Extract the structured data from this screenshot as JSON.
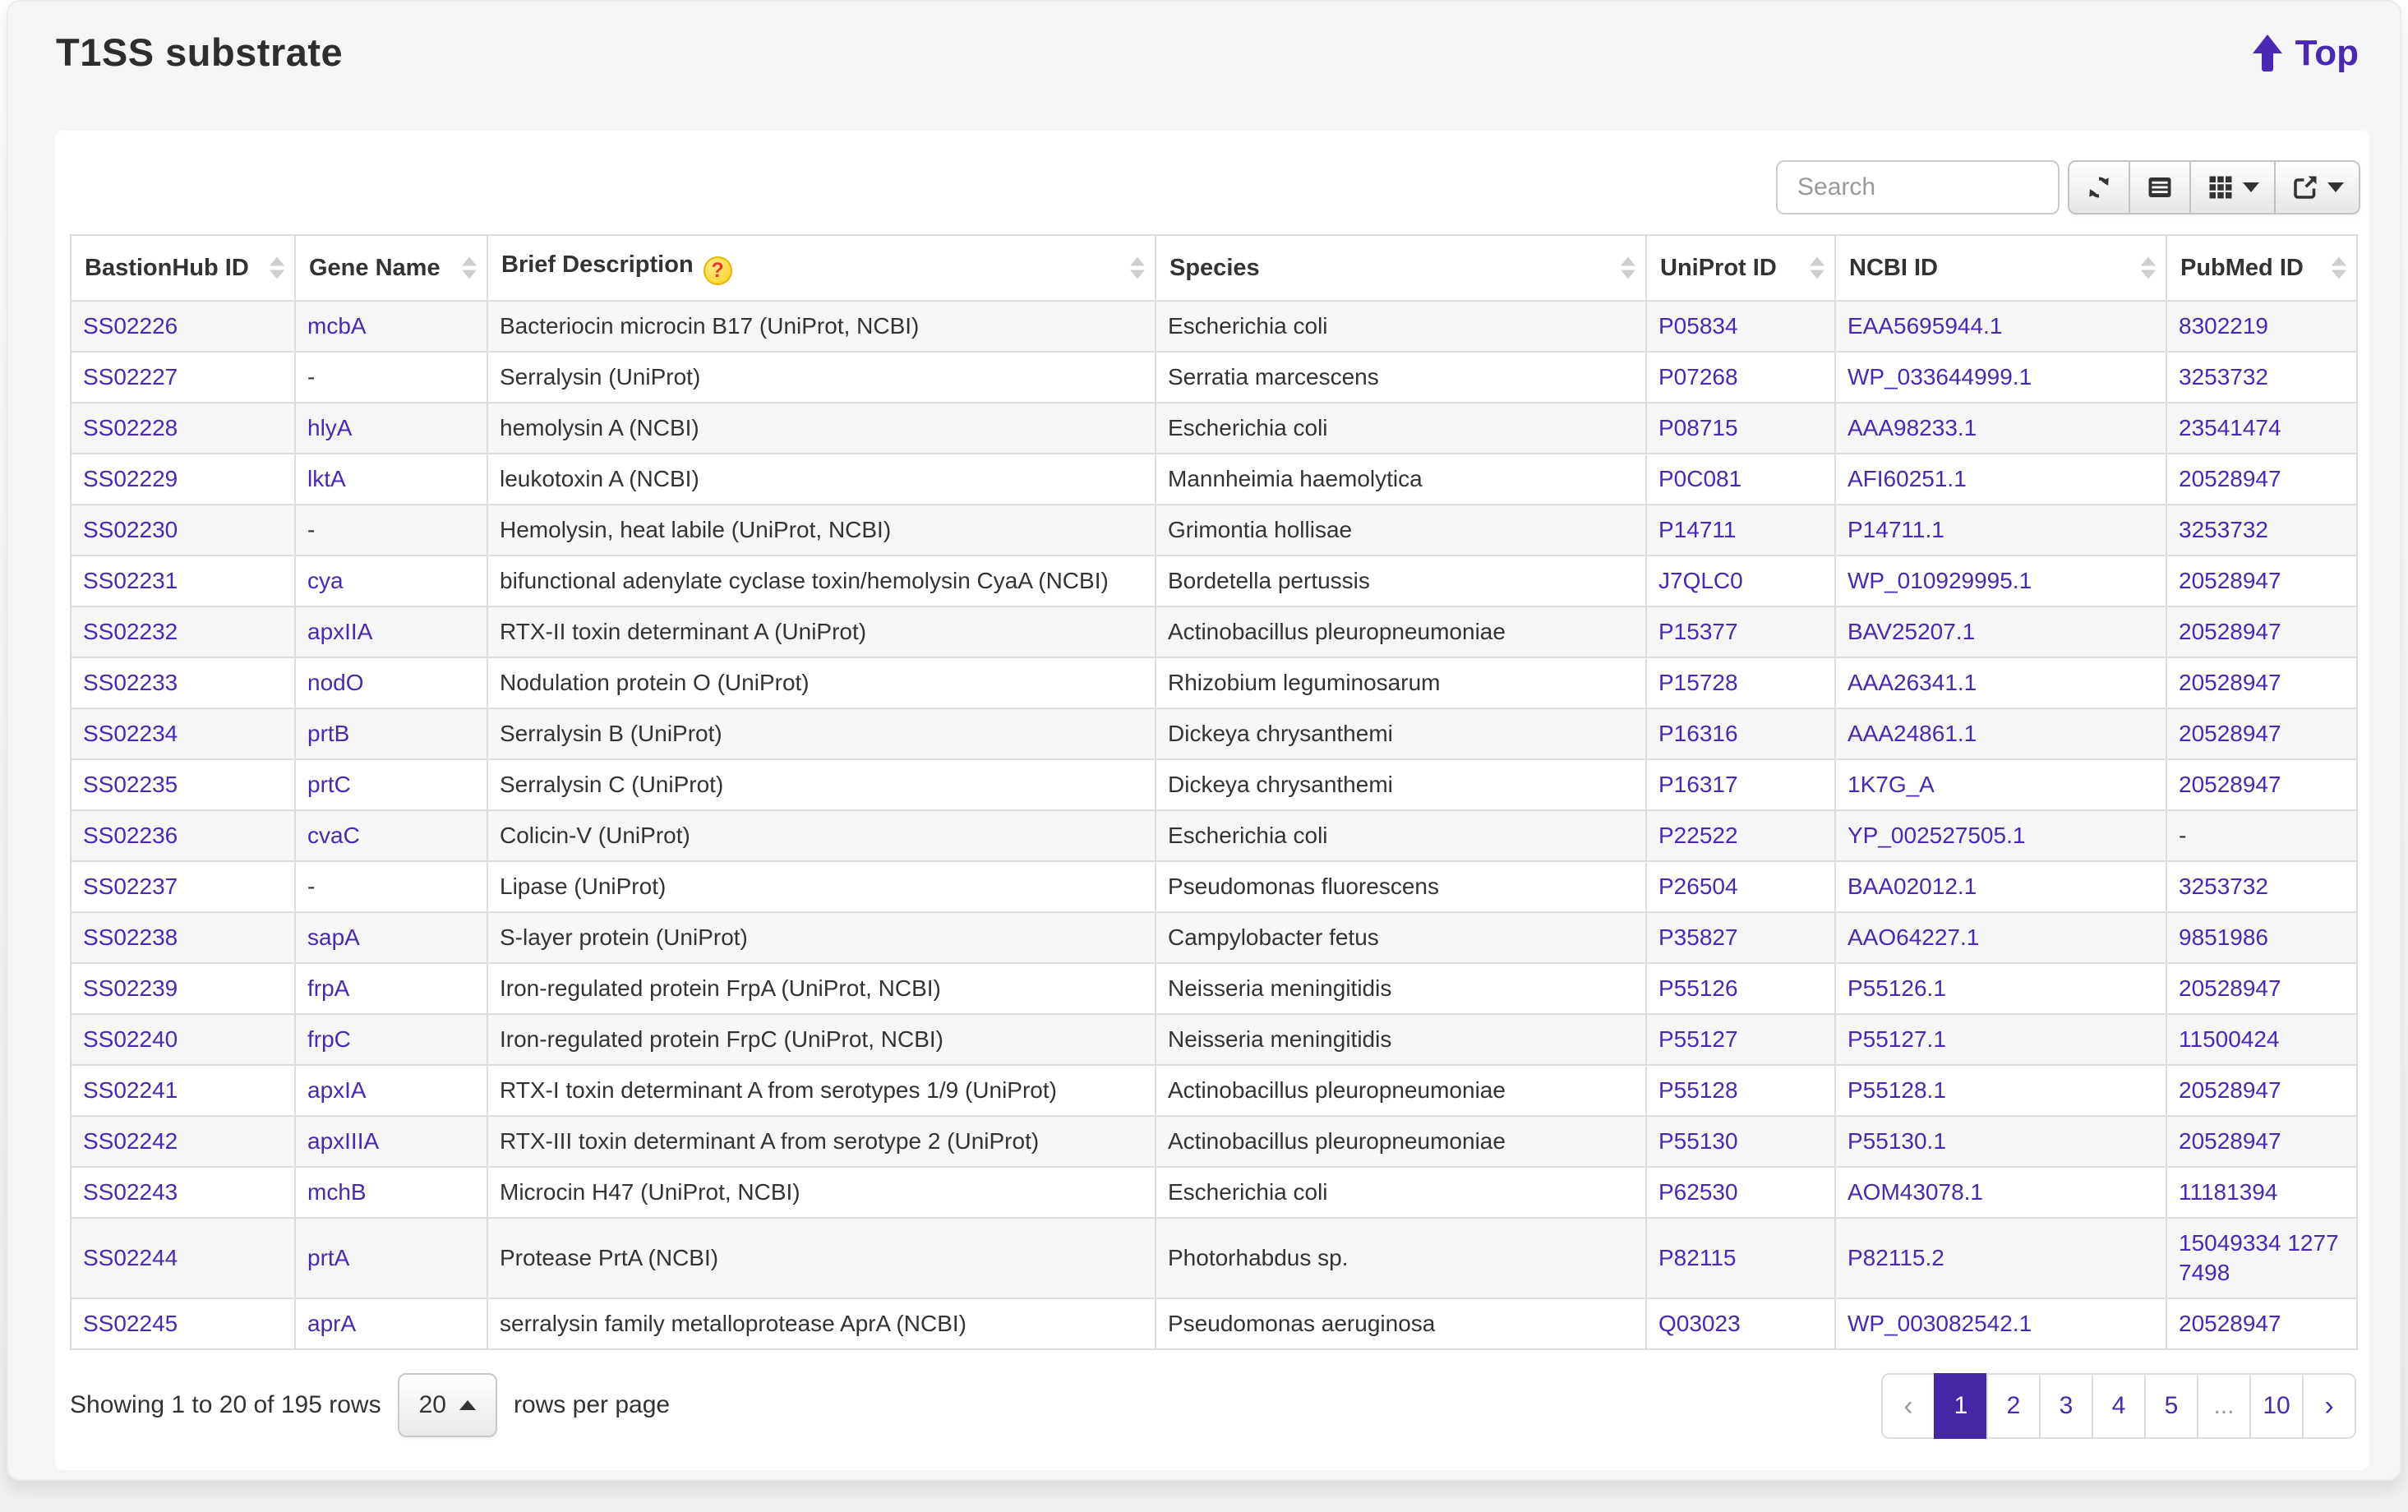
{
  "page": {
    "title": "T1SS substrate",
    "top_link_label": "Top"
  },
  "colors": {
    "accent_purple": "#4b28b3",
    "active_page_bg": "#4527a5",
    "stripe_row_bg": "#f6f6f7",
    "border_gray": "#dddddd",
    "help_badge_yellow": "#fcd21c",
    "help_badge_question_red": "#e23b2e"
  },
  "toolbar": {
    "search_placeholder": "Search",
    "buttons": [
      {
        "icon": "refresh-icon",
        "has_caret": false
      },
      {
        "icon": "toggle-view-icon",
        "has_caret": false
      },
      {
        "icon": "columns-grid-icon",
        "has_caret": true
      },
      {
        "icon": "export-icon",
        "has_caret": true
      }
    ]
  },
  "table": {
    "field_order": [
      "id",
      "gene",
      "desc",
      "species",
      "uniprot",
      "ncbi",
      "pubmed"
    ],
    "link_fields": [
      "id",
      "gene",
      "uniprot",
      "ncbi",
      "pubmed"
    ],
    "columns": [
      {
        "label": "BastionHub ID",
        "field": "id",
        "sortable": true,
        "help": false
      },
      {
        "label": "Gene Name",
        "field": "gene",
        "sortable": true,
        "help": false
      },
      {
        "label": "Brief Description",
        "field": "desc",
        "sortable": true,
        "help": true
      },
      {
        "label": "Species",
        "field": "species",
        "sortable": true,
        "help": false
      },
      {
        "label": "UniProt ID",
        "field": "uniprot",
        "sortable": true,
        "help": false
      },
      {
        "label": "NCBI ID",
        "field": "ncbi",
        "sortable": true,
        "help": false
      },
      {
        "label": "PubMed ID",
        "field": "pubmed",
        "sortable": true,
        "help": false
      }
    ],
    "rows": [
      {
        "id": "SS02226",
        "gene": "mcbA",
        "desc": "Bacteriocin microcin B17 (UniProt, NCBI)",
        "species": "Escherichia coli",
        "uniprot": "P05834",
        "ncbi": "EAA5695944.1",
        "pubmed": "8302219"
      },
      {
        "id": "SS02227",
        "gene": "-",
        "desc": "Serralysin (UniProt)",
        "species": "Serratia marcescens",
        "uniprot": "P07268",
        "ncbi": "WP_033644999.1",
        "pubmed": "3253732"
      },
      {
        "id": "SS02228",
        "gene": "hlyA",
        "desc": "hemolysin A (NCBI)",
        "species": "Escherichia coli",
        "uniprot": "P08715",
        "ncbi": "AAA98233.1",
        "pubmed": "23541474"
      },
      {
        "id": "SS02229",
        "gene": "lktA",
        "desc": "leukotoxin A (NCBI)",
        "species": "Mannheimia haemolytica",
        "uniprot": "P0C081",
        "ncbi": "AFI60251.1",
        "pubmed": "20528947"
      },
      {
        "id": "SS02230",
        "gene": "-",
        "desc": "Hemolysin, heat labile (UniProt, NCBI)",
        "species": "Grimontia hollisae",
        "uniprot": "P14711",
        "ncbi": "P14711.1",
        "pubmed": "3253732"
      },
      {
        "id": "SS02231",
        "gene": "cya",
        "desc": "bifunctional adenylate cyclase toxin/hemolysin CyaA (NCBI)",
        "species": "Bordetella pertussis",
        "uniprot": "J7QLC0",
        "ncbi": "WP_010929995.1",
        "pubmed": "20528947"
      },
      {
        "id": "SS02232",
        "gene": "apxIIA",
        "desc": "RTX-II toxin determinant A (UniProt)",
        "species": "Actinobacillus pleuropneumoniae",
        "uniprot": "P15377",
        "ncbi": "BAV25207.1",
        "pubmed": "20528947"
      },
      {
        "id": "SS02233",
        "gene": "nodO",
        "desc": "Nodulation protein O (UniProt)",
        "species": "Rhizobium leguminosarum",
        "uniprot": "P15728",
        "ncbi": "AAA26341.1",
        "pubmed": "20528947"
      },
      {
        "id": "SS02234",
        "gene": "prtB",
        "desc": "Serralysin B (UniProt)",
        "species": "Dickeya chrysanthemi",
        "uniprot": "P16316",
        "ncbi": "AAA24861.1",
        "pubmed": "20528947"
      },
      {
        "id": "SS02235",
        "gene": "prtC",
        "desc": "Serralysin C (UniProt)",
        "species": "Dickeya chrysanthemi",
        "uniprot": "P16317",
        "ncbi": "1K7G_A",
        "pubmed": "20528947"
      },
      {
        "id": "SS02236",
        "gene": "cvaC",
        "desc": "Colicin-V (UniProt)",
        "species": "Escherichia coli",
        "uniprot": "P22522",
        "ncbi": "YP_002527505.1",
        "pubmed": "-"
      },
      {
        "id": "SS02237",
        "gene": "-",
        "desc": "Lipase (UniProt)",
        "species": "Pseudomonas fluorescens",
        "uniprot": "P26504",
        "ncbi": "BAA02012.1",
        "pubmed": "3253732"
      },
      {
        "id": "SS02238",
        "gene": "sapA",
        "desc": "S-layer protein (UniProt)",
        "species": "Campylobacter fetus",
        "uniprot": "P35827",
        "ncbi": "AAO64227.1",
        "pubmed": "9851986"
      },
      {
        "id": "SS02239",
        "gene": "frpA",
        "desc": "Iron-regulated protein FrpA (UniProt, NCBI)",
        "species": "Neisseria meningitidis",
        "uniprot": "P55126",
        "ncbi": "P55126.1",
        "pubmed": "20528947"
      },
      {
        "id": "SS02240",
        "gene": "frpC",
        "desc": "Iron-regulated protein FrpC (UniProt, NCBI)",
        "species": "Neisseria meningitidis",
        "uniprot": "P55127",
        "ncbi": "P55127.1",
        "pubmed": "11500424"
      },
      {
        "id": "SS02241",
        "gene": "apxIA",
        "desc": "RTX-I toxin determinant A from serotypes 1/9 (UniProt)",
        "species": "Actinobacillus pleuropneumoniae",
        "uniprot": "P55128",
        "ncbi": "P55128.1",
        "pubmed": "20528947"
      },
      {
        "id": "SS02242",
        "gene": "apxIIIA",
        "desc": "RTX-III toxin determinant A from serotype 2 (UniProt)",
        "species": "Actinobacillus pleuropneumoniae",
        "uniprot": "P55130",
        "ncbi": "P55130.1",
        "pubmed": "20528947"
      },
      {
        "id": "SS02243",
        "gene": "mchB",
        "desc": "Microcin H47 (UniProt, NCBI)",
        "species": "Escherichia coli",
        "uniprot": "P62530",
        "ncbi": "AOM43078.1",
        "pubmed": "11181394"
      },
      {
        "id": "SS02244",
        "gene": "prtA",
        "desc": "Protease PrtA (NCBI)",
        "species": "Photorhabdus sp.",
        "uniprot": "P82115",
        "ncbi": "P82115.2",
        "pubmed": "15049334 12777498"
      },
      {
        "id": "SS02245",
        "gene": "aprA",
        "desc": "serralysin family metalloprotease AprA (NCBI)",
        "species": "Pseudomonas aeruginosa",
        "uniprot": "Q03023",
        "ncbi": "WP_003082542.1",
        "pubmed": "20528947"
      }
    ]
  },
  "footer": {
    "showing_text": "Showing 1 to 20 of 195 rows",
    "page_size": "20",
    "rows_per_page_label": "rows per page"
  },
  "pagination": {
    "items": [
      {
        "label": "‹",
        "kind": "prev",
        "muted": true
      },
      {
        "label": "1",
        "kind": "page",
        "active": true
      },
      {
        "label": "2",
        "kind": "page"
      },
      {
        "label": "3",
        "kind": "page"
      },
      {
        "label": "4",
        "kind": "page"
      },
      {
        "label": "5",
        "kind": "page"
      },
      {
        "label": "...",
        "kind": "ellipsis",
        "muted": true
      },
      {
        "label": "10",
        "kind": "page"
      },
      {
        "label": "›",
        "kind": "next"
      }
    ]
  }
}
